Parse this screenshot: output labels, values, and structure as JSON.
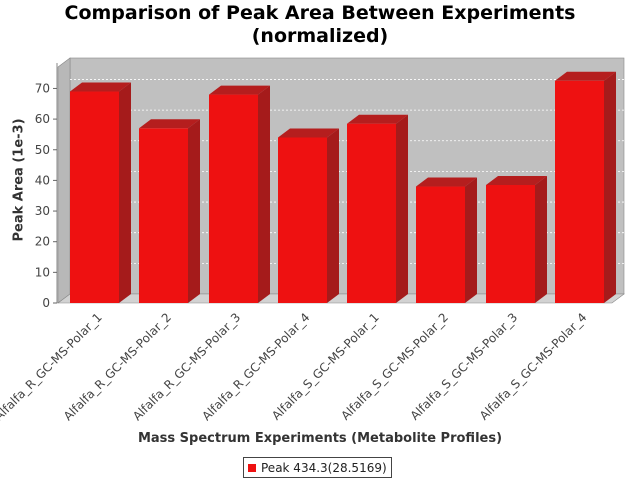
{
  "chart_data": {
    "type": "bar",
    "title": "Comparison of Peak Area Between Experiments (normalized)",
    "title_lines": [
      "Comparison of Peak Area Between Experiments",
      "(normalized)"
    ],
    "xlabel": "Mass Spectrum Experiments (Metabolite Profiles)",
    "ylabel": "Peak Area (1e-3)",
    "ylim": [
      0,
      77
    ],
    "yticks": [
      0,
      10,
      20,
      30,
      40,
      50,
      60,
      70
    ],
    "grid": true,
    "legend_position": "bottom",
    "categories": [
      "Alfalfa_R_GC-MS-Polar_1",
      "Alfalfa_R_GC-MS-Polar_2",
      "Alfalfa_R_GC-MS-Polar_3",
      "Alfalfa_R_GC-MS-Polar_4",
      "Alfalfa_S_GC-MS-Polar_1",
      "Alfalfa_S_GC-MS-Polar_2",
      "Alfalfa_S_GC-MS-Polar_3",
      "Alfalfa_S_GC-MS-Polar_4"
    ],
    "series": [
      {
        "name": "Peak 434.3(28.5169)",
        "color": "#ee1111",
        "values": [
          69,
          57,
          68,
          54,
          58.5,
          38,
          38.5,
          72.5
        ]
      }
    ]
  }
}
